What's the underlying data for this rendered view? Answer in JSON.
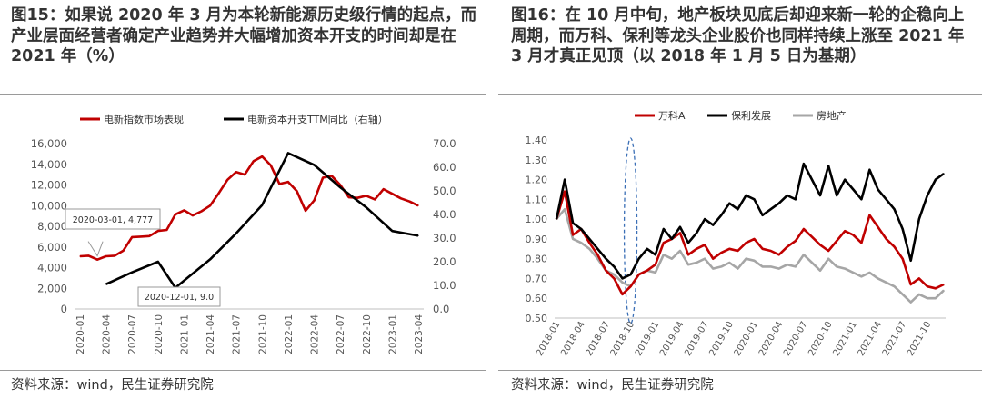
{
  "left": {
    "title": "图15：如果说 2020 年 3 月为本轮新能源历史级行情的起点，而产业层面经营者确定产业趋势并大幅增加资本开支的时间却是在 2021 年（%）",
    "source": "资料来源：wind，民生证券研究院",
    "chart_data": {
      "type": "line",
      "x_tick_labels": [
        "2020-01",
        "2020-04",
        "2020-07",
        "2020-10",
        "2021-01",
        "2021-04",
        "2021-07",
        "2021-10",
        "2022-01",
        "2022-04",
        "2022-07",
        "2022-10",
        "2023-01",
        "2023-04"
      ],
      "ylim_left": [
        0,
        16000
      ],
      "yticks_left": [
        "0",
        "2,000",
        "4,000",
        "6,000",
        "8,000",
        "10,000",
        "12,000",
        "14,000",
        "16,000"
      ],
      "ylim_right": [
        0,
        70
      ],
      "yticks_right": [
        "0.0",
        "10.0",
        "20.0",
        "30.0",
        "40.0",
        "50.0",
        "60.0",
        "70.0"
      ],
      "series": [
        {
          "name": "电新指数市场表现",
          "axis": "left",
          "color": "#c00000",
          "x": [
            "2020-01",
            "2020-02",
            "2020-03",
            "2020-04",
            "2020-05",
            "2020-06",
            "2020-07",
            "2020-08",
            "2020-09",
            "2020-10",
            "2020-11",
            "2020-12",
            "2021-01",
            "2021-02",
            "2021-03",
            "2021-04",
            "2021-05",
            "2021-06",
            "2021-07",
            "2021-08",
            "2021-09",
            "2021-10",
            "2021-11",
            "2021-12",
            "2022-01",
            "2022-02",
            "2022-03",
            "2022-04",
            "2022-05",
            "2022-06",
            "2022-07",
            "2022-08",
            "2022-09",
            "2022-10",
            "2022-11",
            "2022-12",
            "2023-01",
            "2023-02",
            "2023-03",
            "2023-04"
          ],
          "values": [
            5100,
            5150,
            4777,
            5100,
            5150,
            5650,
            6950,
            7000,
            7050,
            7550,
            7650,
            9150,
            9550,
            9050,
            9450,
            10000,
            11200,
            12500,
            13250,
            13000,
            14300,
            14750,
            13900,
            12100,
            12300,
            11400,
            9500,
            10500,
            12700,
            12900,
            12000,
            10800,
            10750,
            10950,
            10600,
            11600,
            11150,
            10700,
            10400,
            10000
          ]
        },
        {
          "name": "电新资本开支TTM同比（右轴）",
          "axis": "right",
          "color": "#000000",
          "x": [
            "2020-04",
            "2020-07",
            "2020-10",
            "2020-12",
            "2021-04",
            "2021-07",
            "2021-10",
            "2022-01",
            "2022-04",
            "2022-07",
            "2022-10",
            "2023-01",
            "2023-04"
          ],
          "values": [
            10.5,
            15.5,
            20.0,
            9.0,
            21.0,
            32.0,
            44.0,
            66.0,
            61.0,
            51.5,
            43.0,
            33.0,
            31.0
          ]
        }
      ],
      "annotations": [
        {
          "text": "2020-03-01, 4,777"
        },
        {
          "text": "2020-12-01, 9.0"
        }
      ]
    }
  },
  "right": {
    "title": "图16：在 10 月中旬，地产板块见底后却迎来新一轮的企稳向上周期，而万科、保利等龙头企业股价也同样持续上涨至 2021 年 3 月才真正见顶（以 2018 年 1 月 5 日为基期）",
    "source": "资料来源：wind，民生证券研究院",
    "chart_data": {
      "type": "line",
      "x_tick_labels": [
        "2018-01",
        "2018-04",
        "2018-07",
        "2018-10",
        "2019-01",
        "2019-04",
        "2019-07",
        "2019-10",
        "2020-01",
        "2020-04",
        "2020-07",
        "2020-10",
        "2021-01",
        "2021-04",
        "2021-07",
        "2021-10"
      ],
      "ylim": [
        0.5,
        1.4
      ],
      "yticks": [
        "0.50",
        "0.60",
        "0.70",
        "0.80",
        "0.90",
        "1.00",
        "1.10",
        "1.20",
        "1.30",
        "1.40"
      ],
      "highlight_x": "2018-10",
      "series": [
        {
          "name": "万科A",
          "color": "#c00000",
          "x": [
            "2018-01",
            "2018-02",
            "2018-03",
            "2018-04",
            "2018-05",
            "2018-06",
            "2018-07",
            "2018-08",
            "2018-09",
            "2018-10",
            "2018-11",
            "2018-12",
            "2019-01",
            "2019-02",
            "2019-03",
            "2019-04",
            "2019-05",
            "2019-06",
            "2019-07",
            "2019-08",
            "2019-09",
            "2019-10",
            "2019-11",
            "2019-12",
            "2020-01",
            "2020-02",
            "2020-03",
            "2020-04",
            "2020-05",
            "2020-06",
            "2020-07",
            "2020-08",
            "2020-09",
            "2020-10",
            "2020-11",
            "2020-12",
            "2021-01",
            "2021-02",
            "2021-03",
            "2021-04",
            "2021-05",
            "2021-06",
            "2021-07",
            "2021-08",
            "2021-09",
            "2021-10",
            "2021-11",
            "2021-12"
          ],
          "values": [
            1.0,
            1.14,
            0.92,
            0.95,
            0.88,
            0.82,
            0.74,
            0.7,
            0.62,
            0.66,
            0.72,
            0.74,
            0.77,
            0.88,
            0.9,
            0.93,
            0.82,
            0.85,
            0.87,
            0.8,
            0.83,
            0.85,
            0.84,
            0.88,
            0.9,
            0.85,
            0.84,
            0.82,
            0.86,
            0.89,
            0.95,
            0.91,
            0.87,
            0.84,
            0.89,
            0.94,
            0.92,
            0.88,
            1.02,
            0.96,
            0.9,
            0.86,
            0.8,
            0.67,
            0.7,
            0.66,
            0.65,
            0.67
          ]
        },
        {
          "name": "保利发展",
          "color": "#000000",
          "x": [
            "2018-01",
            "2018-02",
            "2018-03",
            "2018-04",
            "2018-05",
            "2018-06",
            "2018-07",
            "2018-08",
            "2018-09",
            "2018-10",
            "2018-11",
            "2018-12",
            "2019-01",
            "2019-02",
            "2019-03",
            "2019-04",
            "2019-05",
            "2019-06",
            "2019-07",
            "2019-08",
            "2019-09",
            "2019-10",
            "2019-11",
            "2019-12",
            "2020-01",
            "2020-02",
            "2020-03",
            "2020-04",
            "2020-05",
            "2020-06",
            "2020-07",
            "2020-08",
            "2020-09",
            "2020-10",
            "2020-11",
            "2020-12",
            "2021-01",
            "2021-02",
            "2021-03",
            "2021-04",
            "2021-05",
            "2021-06",
            "2021-07",
            "2021-08",
            "2021-09",
            "2021-10",
            "2021-11",
            "2021-12"
          ],
          "values": [
            1.0,
            1.2,
            0.98,
            0.95,
            0.9,
            0.85,
            0.8,
            0.76,
            0.7,
            0.72,
            0.8,
            0.85,
            0.82,
            0.95,
            0.9,
            0.96,
            0.88,
            0.93,
            1.0,
            0.97,
            1.02,
            1.08,
            1.05,
            1.12,
            1.1,
            1.02,
            1.05,
            1.08,
            1.12,
            1.1,
            1.28,
            1.2,
            1.12,
            1.27,
            1.12,
            1.2,
            1.15,
            1.1,
            1.25,
            1.15,
            1.1,
            1.05,
            0.95,
            0.79,
            1.0,
            1.12,
            1.2,
            1.23
          ]
        },
        {
          "name": "房地产",
          "color": "#a6a6a6",
          "x": [
            "2018-01",
            "2018-02",
            "2018-03",
            "2018-04",
            "2018-05",
            "2018-06",
            "2018-07",
            "2018-08",
            "2018-09",
            "2018-10",
            "2018-11",
            "2018-12",
            "2019-01",
            "2019-02",
            "2019-03",
            "2019-04",
            "2019-05",
            "2019-06",
            "2019-07",
            "2019-08",
            "2019-09",
            "2019-10",
            "2019-11",
            "2019-12",
            "2020-01",
            "2020-02",
            "2020-03",
            "2020-04",
            "2020-05",
            "2020-06",
            "2020-07",
            "2020-08",
            "2020-09",
            "2020-10",
            "2020-11",
            "2020-12",
            "2021-01",
            "2021-02",
            "2021-03",
            "2021-04",
            "2021-05",
            "2021-06",
            "2021-07",
            "2021-08",
            "2021-09",
            "2021-10",
            "2021-11",
            "2021-12"
          ],
          "values": [
            1.0,
            1.05,
            0.9,
            0.88,
            0.85,
            0.8,
            0.74,
            0.72,
            0.68,
            0.66,
            0.72,
            0.74,
            0.73,
            0.82,
            0.8,
            0.84,
            0.77,
            0.78,
            0.8,
            0.75,
            0.76,
            0.78,
            0.75,
            0.8,
            0.79,
            0.76,
            0.76,
            0.75,
            0.77,
            0.76,
            0.82,
            0.78,
            0.74,
            0.8,
            0.76,
            0.75,
            0.73,
            0.71,
            0.73,
            0.7,
            0.68,
            0.66,
            0.62,
            0.58,
            0.62,
            0.6,
            0.6,
            0.64
          ]
        }
      ]
    }
  }
}
